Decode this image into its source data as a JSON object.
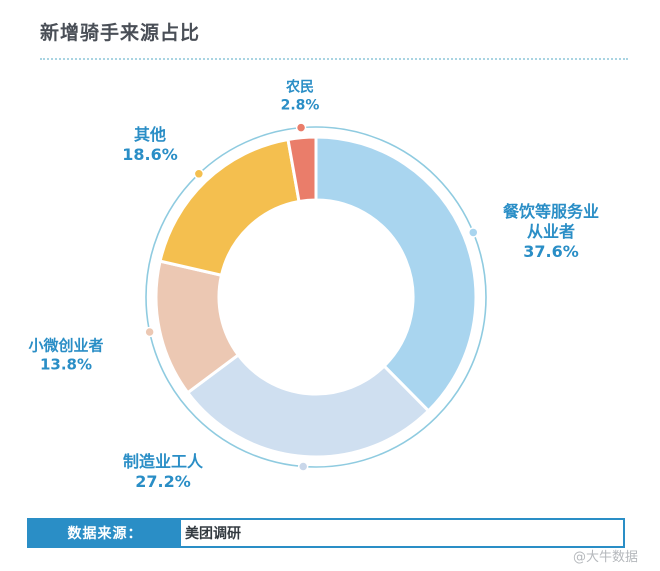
{
  "chart_data": {
    "type": "donut",
    "title": "新增骑手来源占比",
    "slices": [
      {
        "name": "餐饮等服务业从业者",
        "name_lines": [
          "餐饮等服务业",
          "从业者"
        ],
        "value": 37.6,
        "pct": "37.6%",
        "color": "#a9d5ef",
        "dot_color": "#a9d5ef"
      },
      {
        "name": "制造业工人",
        "name_lines": [
          "制造业工人"
        ],
        "value": 27.2,
        "pct": "27.2%",
        "color": "#cfdff0",
        "dot_color": "#c9d7ea"
      },
      {
        "name": "小微创业者",
        "name_lines": [
          "小微创业者"
        ],
        "value": 13.8,
        "pct": "13.8%",
        "color": "#ecc8b3",
        "dot_color": "#ecc8b3"
      },
      {
        "name": "其他",
        "name_lines": [
          "其他"
        ],
        "value": 18.6,
        "pct": "18.6%",
        "color": "#f4bf4f",
        "dot_color": "#f4bf4f"
      },
      {
        "name": "农民",
        "name_lines": [
          "农民"
        ],
        "value": 2.8,
        "pct": "2.8%",
        "color": "#ea7d6a",
        "dot_color": "#ea7d6a"
      }
    ]
  },
  "source": {
    "label": "数据来源：",
    "value": "美团调研"
  },
  "watermark": "@大牛数据"
}
